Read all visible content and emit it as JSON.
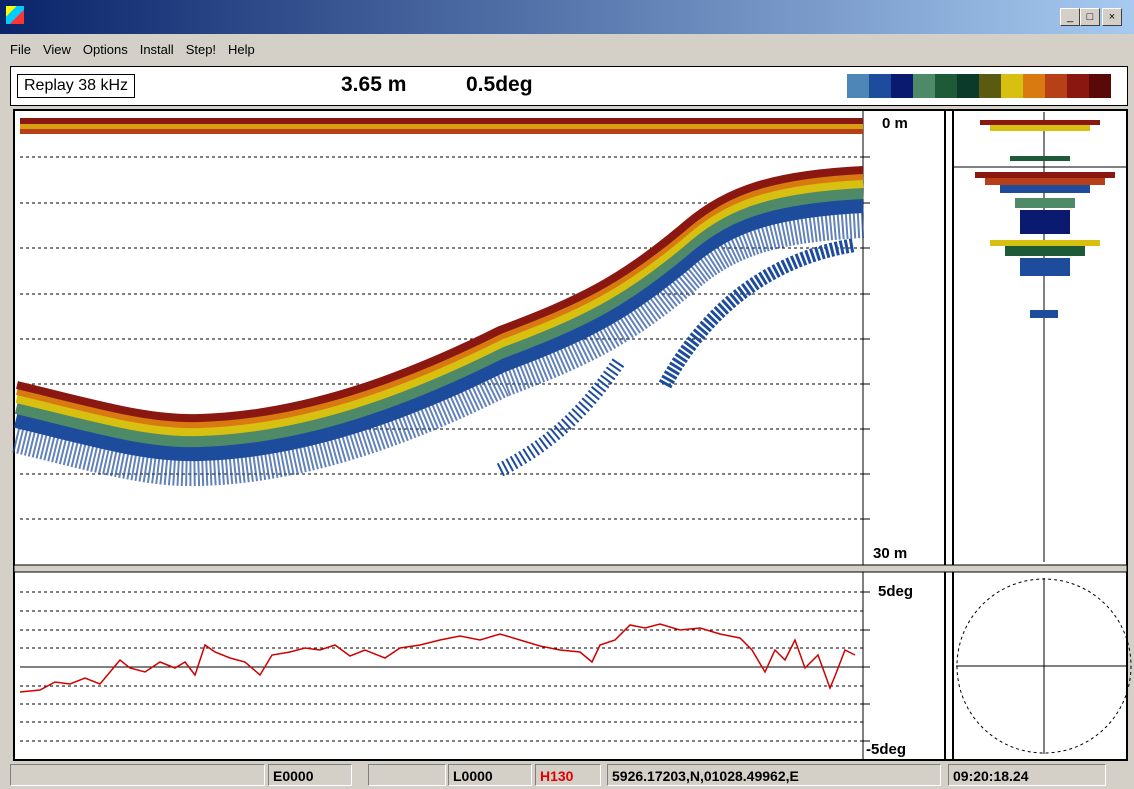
{
  "window": {
    "menu": [
      "File",
      "View",
      "Options",
      "Install",
      "Step!",
      "Help"
    ]
  },
  "header": {
    "mode": "Replay 38 kHz",
    "depth": "3.65 m",
    "angle": "0.5deg"
  },
  "echogram": {
    "top_label": "0 m",
    "bottom_label": "30 m"
  },
  "angle_plot": {
    "top_label": "5deg",
    "bottom_label": "-5deg"
  },
  "status": {
    "fields": [
      "E0000",
      "L0000",
      "H130",
      "5926.17203,N,01028.49962,E",
      "09:20:18.24"
    ]
  }
}
